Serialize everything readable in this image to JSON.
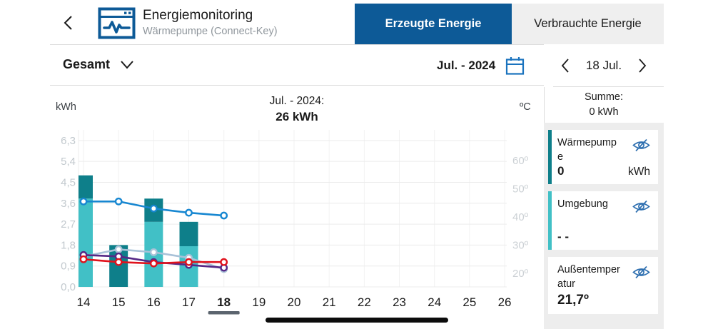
{
  "colors": {
    "primary_blue": "#0d5a97",
    "icon_blue": "#1a73be",
    "eye_blue": "#2e6fb0",
    "bar_dark_teal": "#0e7f8a",
    "bar_light_teal": "#41c0c6"
  },
  "header": {
    "title": "Energiemonitoring",
    "subtitle": "Wärmepumpe (Connect-Key)",
    "tabs": [
      {
        "label": "Erzeugte Energie",
        "active": true
      },
      {
        "label": "Verbrauchte Energie",
        "active": false
      }
    ]
  },
  "controls": {
    "scope_label": "Gesamt",
    "period_label": "Jul. - 2024"
  },
  "day_nav": {
    "label": "18 Jul."
  },
  "summary": {
    "line1": "Summe:",
    "line2": "0 kWh"
  },
  "cards": [
    {
      "label": "Wärmepumpe",
      "value": "0",
      "unit": "kWh",
      "accent": "#0e7f8a"
    },
    {
      "label": "Umgebung",
      "value": "- -",
      "unit": "",
      "accent": "#41c0c6"
    },
    {
      "label": "Außentemperatur",
      "value": "21,7º",
      "unit": "",
      "accent": ""
    }
  ],
  "chart_data": {
    "type": "bar+line",
    "title_line1": "Jul. - 2024:",
    "title_line2": "26 kWh",
    "left_axis": {
      "label": "kWh",
      "min": 0,
      "max": 6.3,
      "step": 0.9,
      "ticks": [
        "6,3",
        "5,4",
        "4,5",
        "3,6",
        "2,7",
        "1,8",
        "0,9",
        "0,0"
      ]
    },
    "right_axis": {
      "label": "ºC",
      "min": 20,
      "max": 60,
      "step": 10,
      "ticks": [
        "60º",
        "50º",
        "40º",
        "30º",
        "20º"
      ]
    },
    "x_axis": {
      "days": [
        14,
        15,
        16,
        17,
        18,
        19,
        20,
        21,
        22,
        23,
        24,
        25,
        26
      ],
      "selected_day": 18
    },
    "bars": {
      "days": [
        14,
        15,
        16,
        17
      ],
      "stack_order": "bottom-to-top",
      "series": [
        {
          "name": "Umgebung",
          "color": "#41c0c6",
          "values_kwh": [
            3.8,
            0,
            2.8,
            1.75
          ]
        },
        {
          "name": "Wärmepumpe",
          "color": "#0e7f8a",
          "values_kwh": [
            1.0,
            1.8,
            1.0,
            1.05
          ]
        }
      ]
    },
    "lines": {
      "days": [
        14,
        15,
        16,
        17,
        18
      ],
      "unit": "ºC",
      "series": [
        {
          "name": "temp-line-light-gray-blue",
          "color": "#a9c2d8",
          "values": [
            26.0,
            28.5,
            27.5,
            25.5,
            21.5
          ]
        },
        {
          "name": "temp-line-purple",
          "color": "#562886",
          "values": [
            26.5,
            26.0,
            24.0,
            23.0,
            22.0
          ]
        },
        {
          "name": "temp-line-red",
          "color": "#e0121c",
          "values": [
            25.0,
            24.0,
            23.5,
            24.0,
            24.0
          ]
        },
        {
          "name": "temp-line-blue",
          "color": "#1787d1",
          "values": [
            45.5,
            45.5,
            43.0,
            41.5,
            40.5
          ]
        }
      ]
    },
    "grid": true,
    "legend_position": "right-panel-cards"
  }
}
